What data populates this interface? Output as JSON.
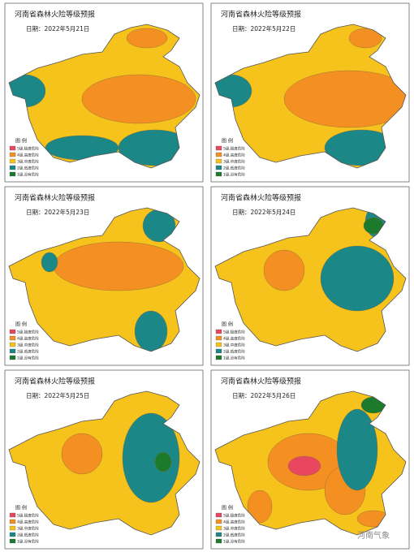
{
  "title": "河南省森林火险等级预报",
  "panels": [
    {
      "date": "日期：2022年5月21日"
    },
    {
      "date": "日期：2022年5月22日"
    },
    {
      "date": "日期：2022年5月23日"
    },
    {
      "date": "日期：2022年5月24日"
    },
    {
      "date": "日期：2022年5月25日"
    },
    {
      "date": "日期：2022年5月26日"
    }
  ],
  "legend": {
    "title": "图 例",
    "items": [
      {
        "label": "5级,极度危险",
        "color": "#e8475f"
      },
      {
        "label": "4级,高度危险",
        "color": "#f39021"
      },
      {
        "label": "3级,中度危险",
        "color": "#f6c21c"
      },
      {
        "label": "2级,低度危险",
        "color": "#1b8787"
      },
      {
        "label": "1级,没有危险",
        "color": "#1c7a2c"
      }
    ]
  },
  "watermark": "河南气象"
}
